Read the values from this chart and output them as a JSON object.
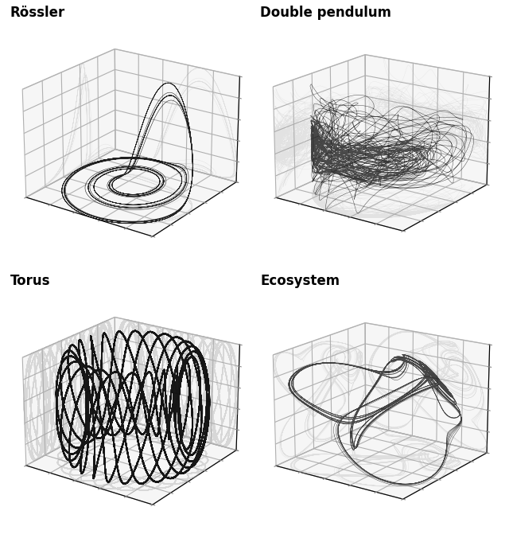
{
  "titles": [
    "Rössler",
    "Double pendulum",
    "Torus",
    "Ecosystem"
  ],
  "title_fontsize": 12,
  "title_fontweight": "bold",
  "figsize": [
    6.4,
    6.76
  ],
  "dpi": 100,
  "bg_color": "#ffffff",
  "trajectory_color": "#000000",
  "projection_color": "#aaaaaa",
  "pane_color": "#eeeeee",
  "grid_color": "#ffffff",
  "n_rossler": 20000,
  "rossler_a": 0.2,
  "rossler_b": 0.2,
  "rossler_c": 5.7,
  "rossler_dt": 0.01,
  "n_dp": 8000,
  "dp_dt": 0.02,
  "n_torus": 15000,
  "torus_R": 2.0,
  "torus_r": 0.5,
  "torus_omega1": 1.0,
  "torus_omega2": 4.8,
  "n_eco": 15000,
  "eco_dt": 0.01
}
